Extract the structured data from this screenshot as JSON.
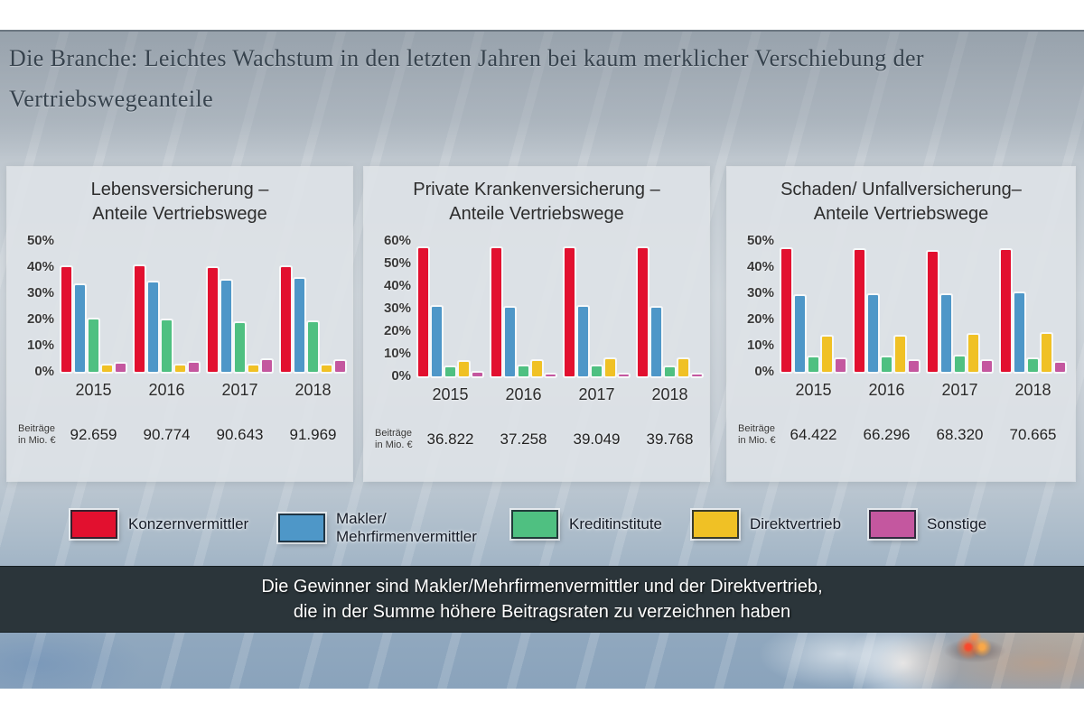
{
  "page": {
    "title_line1": "Die Branche: Leichtes Wachstum in den letzten Jahren bei kaum merklicher Verschiebung der",
    "title_line2": "Vertriebswegeanteile"
  },
  "colors": {
    "konzernvermittler": "#e2102f",
    "makler": "#4e97c8",
    "kreditinstitute": "#4fc081",
    "direktvertrieb": "#f0c125",
    "sonstige": "#c4579f",
    "banner_background": "#2b353a",
    "banner_text": "#ffffff",
    "panel_background": "#dee3e7"
  },
  "chart_data": [
    {
      "type": "bar",
      "title": "Lebensversicherung – Anteile Vertriebswege",
      "title_lines": [
        "Lebensversicherung –",
        "Anteile Vertriebswege"
      ],
      "categories": [
        "2015",
        "2016",
        "2017",
        "2018"
      ],
      "series": [
        {
          "key": "konzernvermittler",
          "name": "Konzernvermittler",
          "color": "#e2102f",
          "values": [
            40,
            40.5,
            39.5,
            40
          ]
        },
        {
          "key": "makler",
          "name": "Makler/Mehrfirmenvermittler",
          "color": "#4e97c8",
          "values": [
            33,
            34,
            35,
            35.5
          ]
        },
        {
          "key": "kreditinstitute",
          "name": "Kreditinstitute",
          "color": "#4fc081",
          "values": [
            20,
            19.5,
            18.5,
            19
          ]
        },
        {
          "key": "direktvertrieb",
          "name": "Direktvertrieb",
          "color": "#f0c125",
          "values": [
            2.5,
            2.5,
            2.5,
            2.5
          ]
        },
        {
          "key": "sonstige",
          "name": "Sonstige",
          "color": "#c4579f",
          "values": [
            3,
            3.5,
            4.5,
            4
          ]
        }
      ],
      "ylim": [
        0,
        50
      ],
      "yticks": [
        "50%",
        "40%",
        "30%",
        "20%",
        "10%",
        "0%"
      ],
      "grid": false,
      "footer_label_lines": [
        "Beiträge",
        "in Mio. €"
      ],
      "footer_values": [
        "92.659",
        "90.774",
        "90.643",
        "91.969"
      ]
    },
    {
      "type": "bar",
      "title": "Private Krankenversicherung – Anteile Vertriebswege",
      "title_lines": [
        "Private Krankenversicherung –",
        "Anteile Vertriebswege"
      ],
      "categories": [
        "2015",
        "2016",
        "2017",
        "2018"
      ],
      "series": [
        {
          "key": "konzernvermittler",
          "name": "Konzernvermittler",
          "color": "#e2102f",
          "values": [
            57,
            57,
            57,
            57
          ]
        },
        {
          "key": "makler",
          "name": "Makler/Mehrfirmenvermittler",
          "color": "#4e97c8",
          "values": [
            31,
            30.5,
            31,
            30.5
          ]
        },
        {
          "key": "kreditinstitute",
          "name": "Kreditinstitute",
          "color": "#4fc081",
          "values": [
            4,
            4.5,
            4.5,
            4
          ]
        },
        {
          "key": "direktvertrieb",
          "name": "Direktvertrieb",
          "color": "#f0c125",
          "values": [
            6.5,
            7,
            7.5,
            7.5
          ]
        },
        {
          "key": "sonstige",
          "name": "Sonstige",
          "color": "#c4579f",
          "values": [
            1.5,
            1,
            1,
            1
          ]
        }
      ],
      "ylim": [
        0,
        60
      ],
      "yticks": [
        "60%",
        "50%",
        "40%",
        "30%",
        "20%",
        "10%",
        "0%"
      ],
      "grid": false,
      "footer_label_lines": [
        "Beiträge",
        "in Mio. €"
      ],
      "footer_values": [
        "36.822",
        "37.258",
        "39.049",
        "39.768"
      ]
    },
    {
      "type": "bar",
      "title": "Schaden/ Unfallversicherung– Anteile Vertriebswege",
      "title_lines": [
        "Schaden/ Unfallversicherung–",
        "Anteile Vertriebswege"
      ],
      "categories": [
        "2015",
        "2016",
        "2017",
        "2018"
      ],
      "series": [
        {
          "key": "konzernvermittler",
          "name": "Konzernvermittler",
          "color": "#e2102f",
          "values": [
            47,
            46.5,
            46,
            46.5
          ]
        },
        {
          "key": "makler",
          "name": "Makler/Mehrfirmenvermittler",
          "color": "#4e97c8",
          "values": [
            29,
            29.5,
            29.5,
            30
          ]
        },
        {
          "key": "kreditinstitute",
          "name": "Kreditinstitute",
          "color": "#4fc081",
          "values": [
            5.5,
            5.5,
            6,
            5
          ]
        },
        {
          "key": "direktvertrieb",
          "name": "Direktvertrieb",
          "color": "#f0c125",
          "values": [
            13.5,
            13.5,
            14,
            14.5
          ]
        },
        {
          "key": "sonstige",
          "name": "Sonstige",
          "color": "#c4579f",
          "values": [
            5,
            4,
            4,
            3.5
          ]
        }
      ],
      "ylim": [
        0,
        50
      ],
      "yticks": [
        "50%",
        "40%",
        "30%",
        "20%",
        "10%",
        "0%"
      ],
      "grid": false,
      "footer_label_lines": [
        "Beiträge",
        "in Mio. €"
      ],
      "footer_values": [
        "64.422",
        "66.296",
        "68.320",
        "70.665"
      ]
    }
  ],
  "legend": {
    "items": [
      {
        "key": "konzernvermittler",
        "color": "#e2102f",
        "lines": [
          "Konzernvermittler"
        ]
      },
      {
        "key": "makler",
        "color": "#4e97c8",
        "lines": [
          "Makler/",
          "Mehrfirmenvermittler"
        ]
      },
      {
        "key": "kreditinstitute",
        "color": "#4fc081",
        "lines": [
          "Kreditinstitute"
        ]
      },
      {
        "key": "direktvertrieb",
        "color": "#f0c125",
        "lines": [
          "Direktvertrieb"
        ]
      },
      {
        "key": "sonstige",
        "color": "#c4579f",
        "lines": [
          "Sonstige"
        ]
      }
    ]
  },
  "banner": {
    "line1": "Die Gewinner sind Makler/Mehrfirmenvermittler und der Direktvertrieb,",
    "line2": "die in der Summe höhere Beitragsraten zu verzeichnen haben"
  }
}
